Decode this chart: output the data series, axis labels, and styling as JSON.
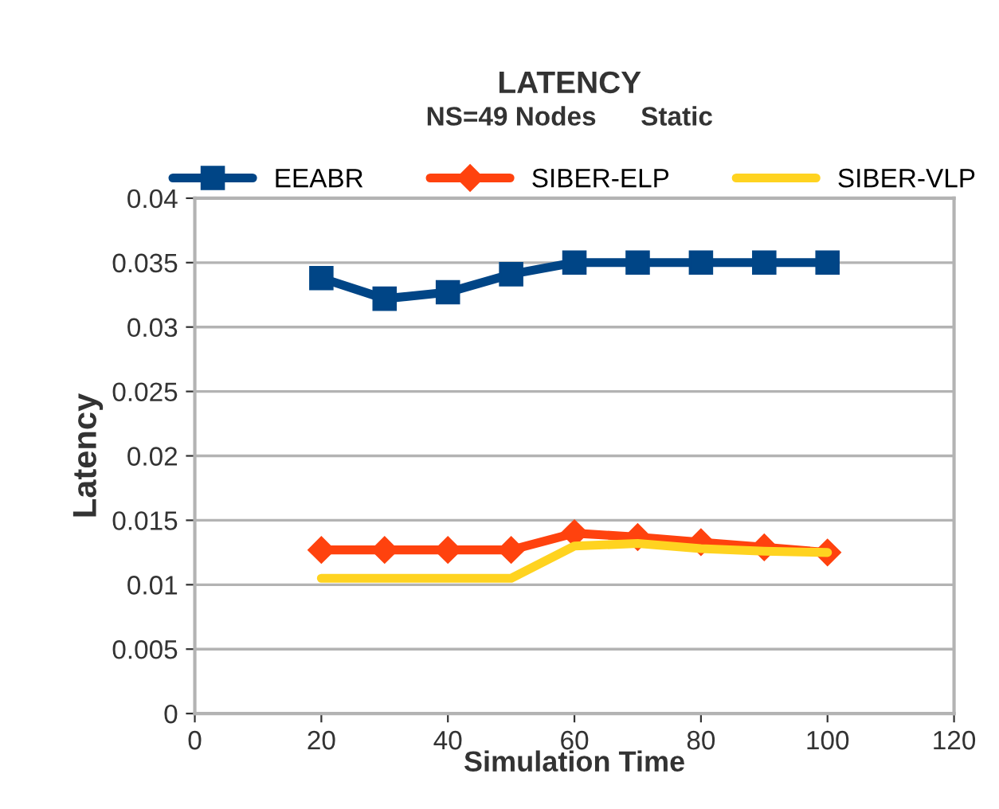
{
  "chart_data": {
    "type": "line",
    "title": "LATENCY",
    "subtitle": "NS=49 Nodes      Static",
    "xlabel": "Simulation Time",
    "ylabel": "Latency",
    "x": [
      20,
      30,
      40,
      50,
      60,
      70,
      80,
      90,
      100
    ],
    "series": [
      {
        "name": "EEABR",
        "color": "#004586",
        "marker": "square",
        "values": [
          0.0338,
          0.0322,
          0.0327,
          0.0341,
          0.035,
          0.035,
          0.035,
          0.035,
          0.035
        ]
      },
      {
        "name": "SIBER-ELP",
        "color": "#ff420e",
        "marker": "diamond",
        "values": [
          0.0127,
          0.0127,
          0.0127,
          0.0127,
          0.014,
          0.0137,
          0.0133,
          0.0129,
          0.0125
        ]
      },
      {
        "name": "SIBER-VLP",
        "color": "#ffd320",
        "marker": "none",
        "values": [
          0.0105,
          0.0105,
          0.0105,
          0.0105,
          0.013,
          0.0132,
          0.0128,
          0.0126,
          0.0125
        ]
      }
    ],
    "xlim": [
      0,
      120
    ],
    "xticks": [
      0,
      20,
      40,
      60,
      80,
      100,
      120
    ],
    "ylim": [
      0,
      0.04
    ],
    "yticks": [
      0,
      0.005,
      0.01,
      0.015,
      0.02,
      0.025,
      0.03,
      0.035,
      0.04
    ],
    "grid": "y",
    "legend": "top"
  }
}
